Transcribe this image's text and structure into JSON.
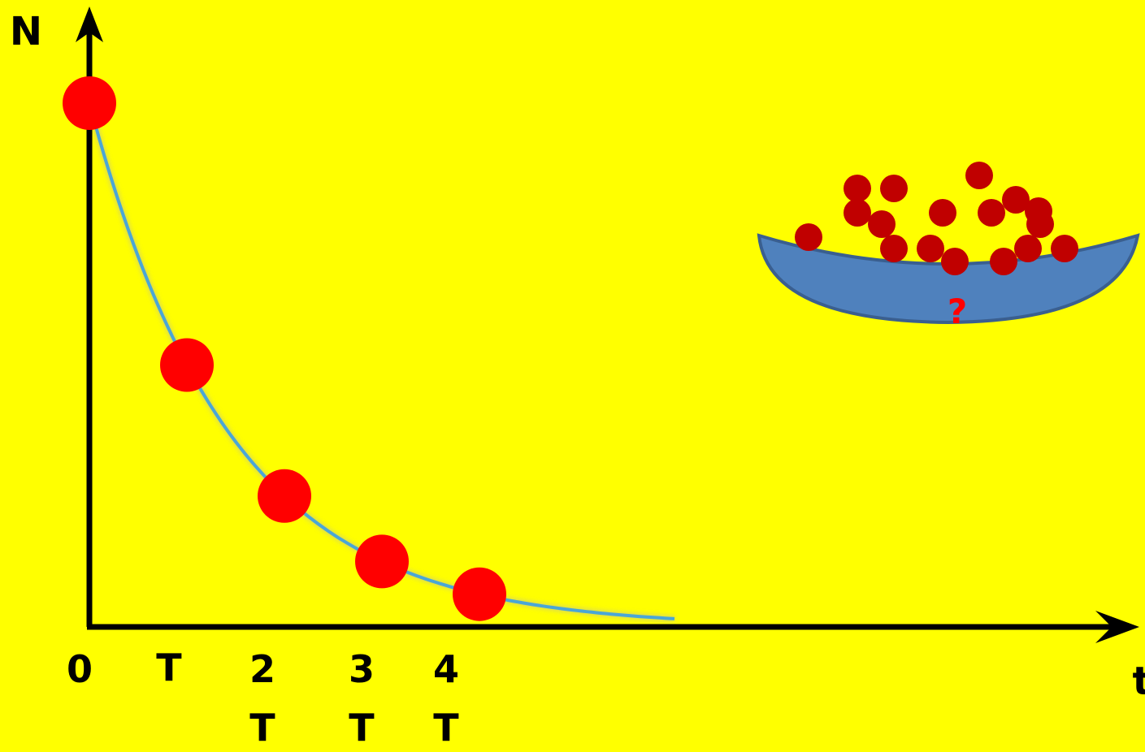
{
  "axes": {
    "y_label": "N",
    "x_label": "t"
  },
  "ticks": [
    {
      "label": "0",
      "label2": ""
    },
    {
      "label": "T",
      "label2": ""
    },
    {
      "label": "2",
      "label2": "T"
    },
    {
      "label": "3",
      "label2": "T"
    },
    {
      "label": "4",
      "label2": "T"
    }
  ],
  "decay_points": [
    {
      "multiple_of_T": 0,
      "fraction": 1
    },
    {
      "multiple_of_T": 1,
      "fraction": 0.5
    },
    {
      "multiple_of_T": 2,
      "fraction": 0.25
    },
    {
      "multiple_of_T": 3,
      "fraction": 0.125
    },
    {
      "multiple_of_T": 4,
      "fraction": 0.0625
    }
  ],
  "bowl": {
    "label": "?",
    "ball_count": 17
  },
  "colors": {
    "background": "#ffff00",
    "axis": "#000000",
    "curve": "#4aa6d6",
    "decay_point": "#ff0000",
    "bowl_fill": "#4f81bd",
    "bowl_ball": "#c00000",
    "question_mark": "#ff0000"
  }
}
